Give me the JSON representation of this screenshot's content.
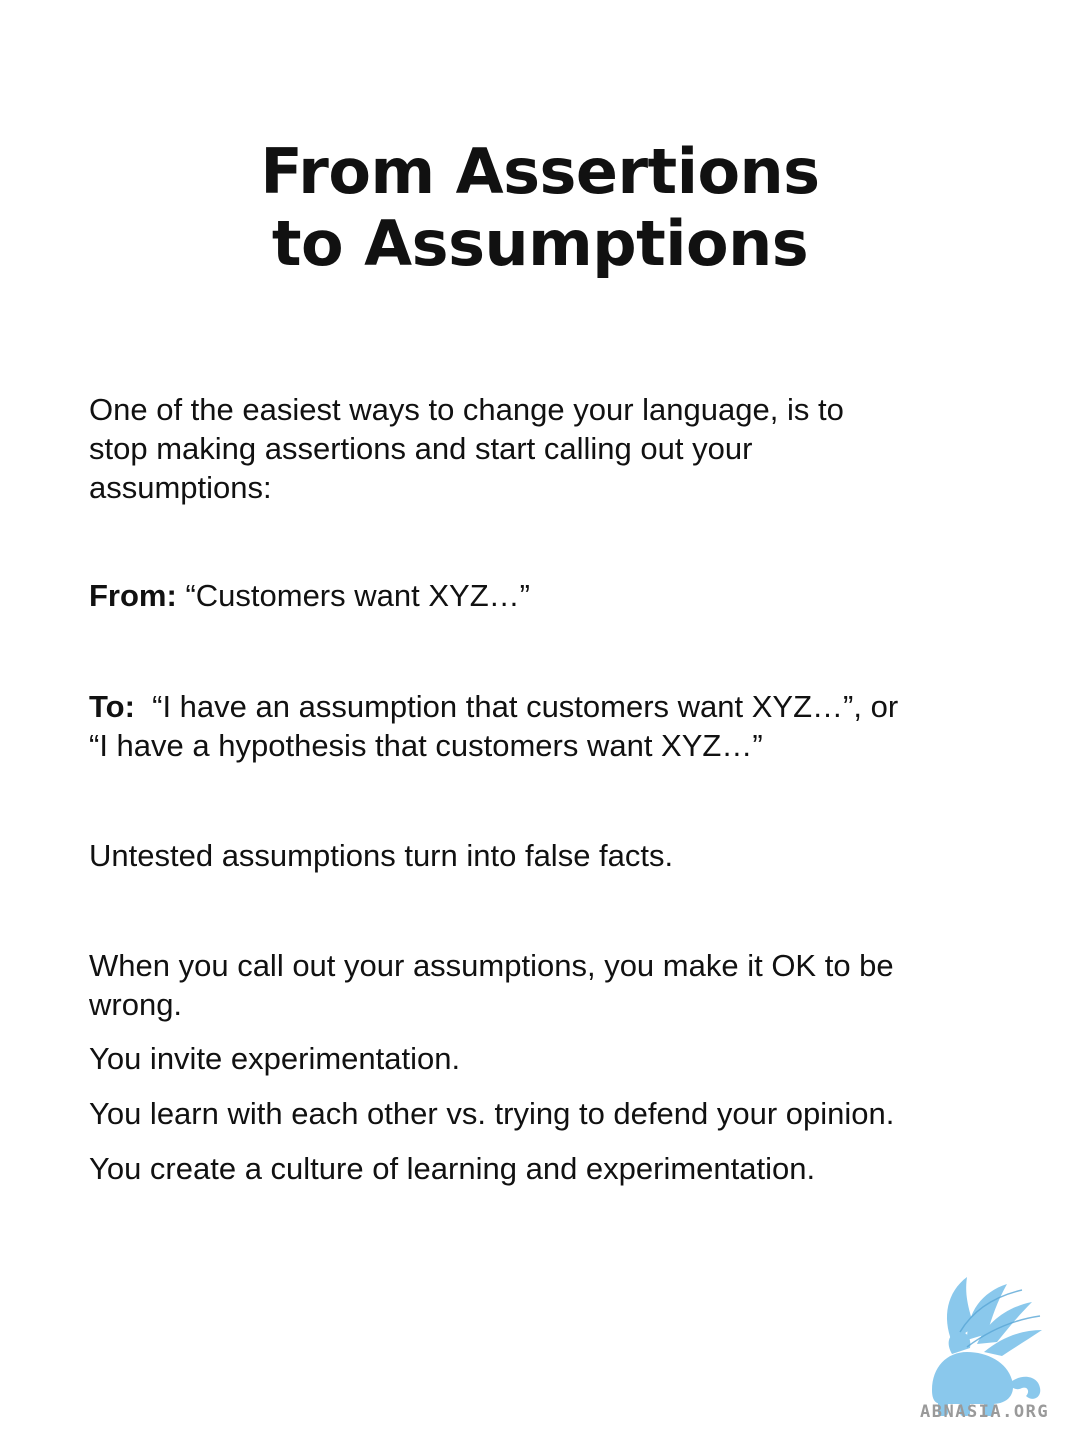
{
  "title": {
    "line1": "From Assertions",
    "line2": "to Assumptions"
  },
  "intro": {
    "line1": "One of the easiest ways to change your language, is to",
    "line2": "stop making assertions and start calling out your",
    "line3": "assumptions:"
  },
  "from": {
    "label": "From:",
    "text": " “Customers want XYZ…”"
  },
  "to": {
    "label": "To:",
    "line1": "  “I have an assumption that customers want XYZ…”, or",
    "line2": "“I have a hypothesis that customers want XYZ…”"
  },
  "untested": "Untested assumptions turn into false facts.",
  "call_out": {
    "line1": "When you call out your assumptions, you make it OK to be",
    "line2": "wrong."
  },
  "benefits": [
    "You invite experimentation.",
    "You learn with each other vs. trying to defend your opinion.",
    "You create a culture of learning and experimentation."
  ],
  "watermark": {
    "text": "ABNASIA.ORG",
    "color": "#7ec3ea"
  }
}
